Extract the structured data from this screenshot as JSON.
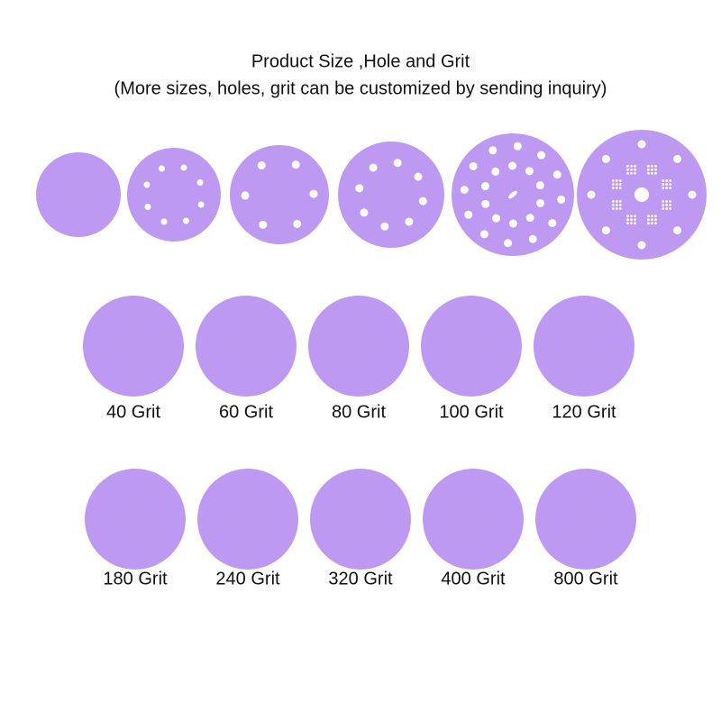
{
  "header": {
    "title": "Product Size ,Hole and Grit",
    "subtitle": "(More sizes, holes, grit can be customized by sending inquiry)"
  },
  "grits": [
    [
      "40 Grit",
      "60 Grit",
      "80 Grit",
      "100 Grit",
      "120 Grit"
    ],
    [
      "180 Grit",
      "240 Grit",
      "320 Grit",
      "400 Grit",
      "800 Grit"
    ]
  ]
}
